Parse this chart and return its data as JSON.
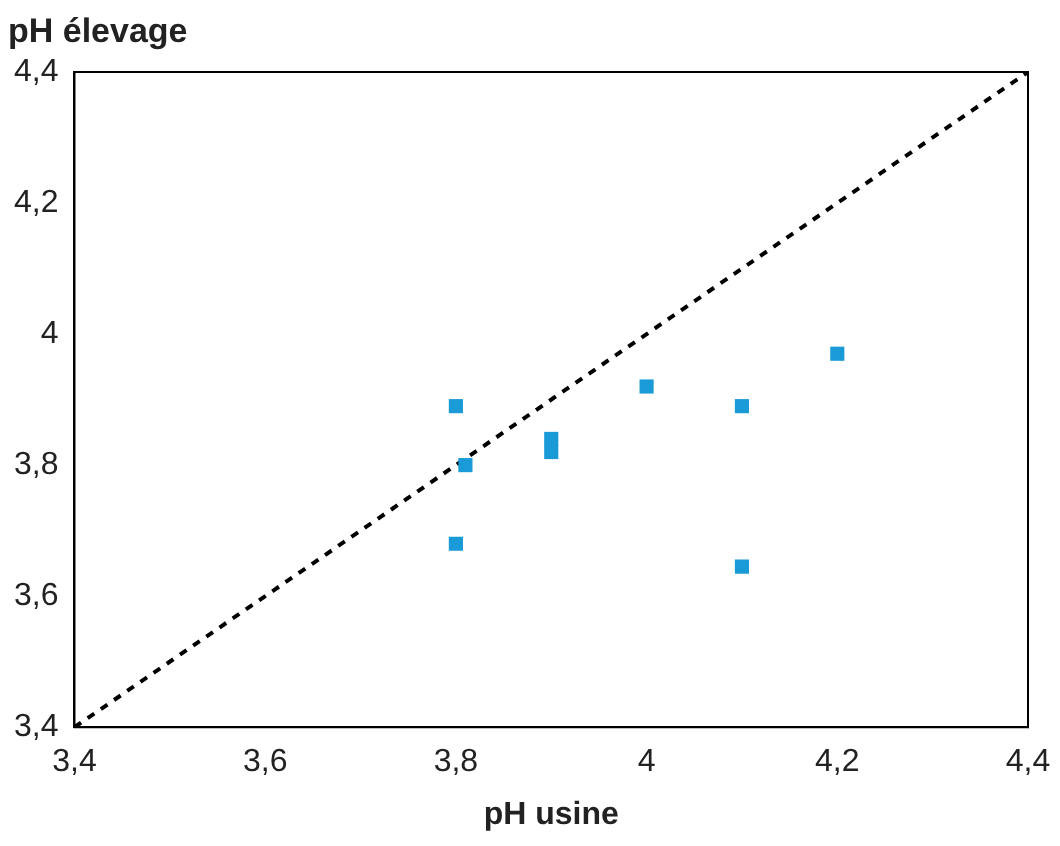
{
  "chart_data": {
    "type": "scatter",
    "xlabel": "pH usine",
    "ylabel": "pH élevage",
    "xlim": [
      3.4,
      4.4
    ],
    "ylim": [
      3.4,
      4.4
    ],
    "xticks": [
      {
        "value": 3.4,
        "label": "3,4"
      },
      {
        "value": 3.6,
        "label": "3,6"
      },
      {
        "value": 3.8,
        "label": "3,8"
      },
      4,
      {
        "value": 4.2,
        "label": "4,2"
      },
      {
        "value": 4.4,
        "label": "4,4"
      }
    ],
    "yticks": [
      {
        "value": 3.4,
        "label": "3,4"
      },
      {
        "value": 3.6,
        "label": "3,6"
      },
      {
        "value": 3.8,
        "label": "3,8"
      },
      4,
      {
        "value": 4.2,
        "label": "4,2"
      },
      {
        "value": 4.4,
        "label": "4,4"
      }
    ],
    "grid": false,
    "legend": false,
    "marker": "square",
    "series": [
      {
        "type": "scatter",
        "color": "#1a9ad6",
        "x": [
          3.8,
          3.81,
          3.8,
          3.9,
          3.9,
          4.0,
          4.1,
          4.1,
          4.2
        ],
        "values": [
          3.89,
          3.8,
          3.68,
          3.84,
          3.82,
          3.92,
          3.89,
          3.645,
          3.97
        ]
      },
      {
        "type": "line",
        "color": "#000000",
        "line_style": "dashed",
        "marker": "none",
        "x": [
          3.4,
          4.4
        ],
        "values": [
          3.4,
          4.4
        ]
      }
    ]
  }
}
